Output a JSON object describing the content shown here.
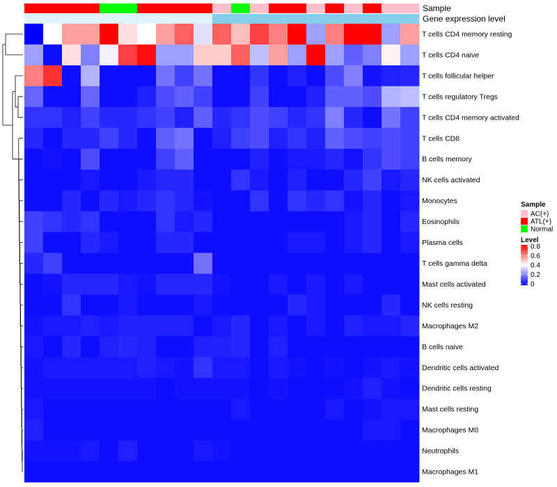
{
  "chart_data": {
    "type": "heatmap",
    "annotation_tracks": [
      {
        "label": "Sample",
        "values": [
          "ATL(+)",
          "ATL(+)",
          "ATL(+)",
          "ATL(+)",
          "Normal",
          "Normal",
          "ATL(+)",
          "ATL(+)",
          "ATL(+)",
          "ATL(+)",
          "AC(+)",
          "Normal",
          "AC(+)",
          "ATL(+)",
          "ATL(+)",
          "AC(+)",
          "ATL(+)",
          "AC(+)",
          "ATL(+)",
          "AC(+)",
          "AC(+)"
        ]
      },
      {
        "label": "Gene expression level",
        "values": [
          "low",
          "low",
          "low",
          "low",
          "low",
          "low",
          "low",
          "low",
          "low",
          "low",
          "high",
          "high",
          "high",
          "high",
          "high",
          "high",
          "high",
          "high",
          "high",
          "high",
          "high"
        ]
      }
    ],
    "sample_colors": {
      "AC(+)": "#FFC0CB",
      "ATL(+)": "#FF0000",
      "Normal": "#00FF00"
    },
    "expression_colors": {
      "low": "#DFF3FA",
      "high": "#87CEEB"
    },
    "row_labels": [
      "T cells CD4 memory resting",
      "T cells CD4 naive",
      "T cells follicular helper",
      "T cells regulatory  Tregs",
      "T cells CD4 memory activated",
      "T cells CD8",
      "B cells memory",
      "NK cells activated",
      "Monocytes",
      "Eosinophils",
      "Plasma cells",
      "T cells gamma delta",
      "Mast cells activated",
      "NK cells resting",
      "Macrophages M2",
      "B cells naive",
      "Dendritic cells activated",
      "Dendritic cells resting",
      "Mast cells resting",
      "Macrophages M0",
      "Neutrophils",
      "Macrophages M1"
    ],
    "values": [
      [
        0.0,
        0.4,
        0.55,
        0.55,
        0.8,
        0.45,
        0.4,
        0.55,
        0.65,
        0.35,
        0.65,
        0.5,
        0.7,
        0.6,
        0.8,
        0.25,
        0.6,
        0.8,
        0.8,
        0.25,
        0.55
      ],
      [
        0.25,
        0.02,
        0.45,
        0.2,
        0.38,
        0.7,
        0.78,
        0.25,
        0.25,
        0.48,
        0.48,
        0.65,
        0.3,
        0.55,
        0.25,
        0.8,
        0.25,
        0.15,
        0.2,
        0.42,
        0.25
      ],
      [
        0.6,
        0.72,
        0.02,
        0.28,
        0.02,
        0.02,
        0.02,
        0.18,
        0.1,
        0.18,
        0.02,
        0.02,
        0.08,
        0.02,
        0.05,
        0.02,
        0.12,
        0.2,
        0.03,
        0.05,
        0.06
      ],
      [
        0.16,
        0.02,
        0.02,
        0.16,
        0.02,
        0.02,
        0.05,
        0.12,
        0.15,
        0.1,
        0.02,
        0.02,
        0.1,
        0.02,
        0.02,
        0.05,
        0.15,
        0.15,
        0.12,
        0.28,
        0.3
      ],
      [
        0.08,
        0.08,
        0.05,
        0.1,
        0.06,
        0.06,
        0.08,
        0.1,
        0.05,
        0.15,
        0.06,
        0.08,
        0.12,
        0.1,
        0.06,
        0.08,
        0.2,
        0.06,
        0.02,
        0.18,
        0.1
      ],
      [
        0.06,
        0.02,
        0.06,
        0.06,
        0.1,
        0.06,
        0.02,
        0.15,
        0.18,
        0.02,
        0.05,
        0.1,
        0.12,
        0.05,
        0.08,
        0.05,
        0.15,
        0.12,
        0.1,
        0.12,
        0.1
      ],
      [
        0.02,
        0.03,
        0.02,
        0.12,
        0.02,
        0.02,
        0.02,
        0.1,
        0.15,
        0.02,
        0.02,
        0.02,
        0.05,
        0.02,
        0.04,
        0.04,
        0.06,
        0.03,
        0.08,
        0.12,
        0.1
      ],
      [
        0.02,
        0.02,
        0.02,
        0.04,
        0.02,
        0.02,
        0.04,
        0.06,
        0.06,
        0.02,
        0.02,
        0.08,
        0.04,
        0.02,
        0.05,
        0.02,
        0.02,
        0.06,
        0.1,
        0.04,
        0.06
      ],
      [
        0.02,
        0.02,
        0.06,
        0.02,
        0.06,
        0.04,
        0.06,
        0.08,
        0.06,
        0.03,
        0.02,
        0.02,
        0.08,
        0.02,
        0.08,
        0.06,
        0.08,
        0.03,
        0.06,
        0.02,
        0.04
      ],
      [
        0.1,
        0.08,
        0.06,
        0.08,
        0.02,
        0.02,
        0.02,
        0.08,
        0.04,
        0.06,
        0.02,
        0.02,
        0.02,
        0.02,
        0.02,
        0.02,
        0.02,
        0.04,
        0.06,
        0.02,
        0.06
      ],
      [
        0.1,
        0.02,
        0.02,
        0.06,
        0.04,
        0.02,
        0.02,
        0.06,
        0.06,
        0.02,
        0.02,
        0.02,
        0.02,
        0.02,
        0.04,
        0.04,
        0.02,
        0.04,
        0.06,
        0.02,
        0.04
      ],
      [
        0.06,
        0.1,
        0.02,
        0.02,
        0.02,
        0.02,
        0.02,
        0.02,
        0.02,
        0.18,
        0.02,
        0.02,
        0.02,
        0.02,
        0.02,
        0.02,
        0.02,
        0.02,
        0.02,
        0.02,
        0.02
      ],
      [
        0.02,
        0.03,
        0.06,
        0.06,
        0.06,
        0.04,
        0.03,
        0.06,
        0.06,
        0.06,
        0.03,
        0.02,
        0.02,
        0.04,
        0.02,
        0.04,
        0.02,
        0.04,
        0.02,
        0.02,
        0.02
      ],
      [
        0.02,
        0.02,
        0.08,
        0.02,
        0.02,
        0.04,
        0.02,
        0.02,
        0.02,
        0.04,
        0.02,
        0.02,
        0.02,
        0.02,
        0.06,
        0.04,
        0.02,
        0.02,
        0.02,
        0.06,
        0.02
      ],
      [
        0.03,
        0.04,
        0.04,
        0.05,
        0.04,
        0.05,
        0.05,
        0.05,
        0.05,
        0.02,
        0.04,
        0.06,
        0.02,
        0.04,
        0.02,
        0.04,
        0.02,
        0.05,
        0.04,
        0.04,
        0.06
      ],
      [
        0.04,
        0.02,
        0.06,
        0.02,
        0.05,
        0.06,
        0.05,
        0.02,
        0.02,
        0.05,
        0.05,
        0.06,
        0.02,
        0.05,
        0.02,
        0.02,
        0.02,
        0.02,
        0.02,
        0.02,
        0.02
      ],
      [
        0.03,
        0.04,
        0.04,
        0.04,
        0.04,
        0.04,
        0.05,
        0.04,
        0.03,
        0.08,
        0.04,
        0.04,
        0.02,
        0.04,
        0.03,
        0.02,
        0.03,
        0.02,
        0.03,
        0.04,
        0.03
      ],
      [
        0.03,
        0.03,
        0.03,
        0.03,
        0.03,
        0.03,
        0.03,
        0.02,
        0.03,
        0.03,
        0.03,
        0.03,
        0.02,
        0.03,
        0.02,
        0.02,
        0.02,
        0.03,
        0.05,
        0.03,
        0.02
      ],
      [
        0.04,
        0.02,
        0.02,
        0.02,
        0.02,
        0.02,
        0.02,
        0.02,
        0.02,
        0.02,
        0.02,
        0.04,
        0.02,
        0.02,
        0.02,
        0.02,
        0.04,
        0.02,
        0.03,
        0.04,
        0.04
      ],
      [
        0.05,
        0.02,
        0.02,
        0.02,
        0.02,
        0.02,
        0.02,
        0.02,
        0.02,
        0.02,
        0.02,
        0.02,
        0.02,
        0.02,
        0.02,
        0.02,
        0.02,
        0.02,
        0.04,
        0.04,
        0.02
      ],
      [
        0.03,
        0.03,
        0.03,
        0.04,
        0.02,
        0.05,
        0.02,
        0.02,
        0.02,
        0.04,
        0.03,
        0.02,
        0.02,
        0.02,
        0.02,
        0.02,
        0.02,
        0.02,
        0.02,
        0.02,
        0.02
      ],
      [
        0.02,
        0.02,
        0.02,
        0.02,
        0.02,
        0.02,
        0.02,
        0.02,
        0.02,
        0.02,
        0.02,
        0.02,
        0.02,
        0.02,
        0.02,
        0.02,
        0.02,
        0.02,
        0.02,
        0.02,
        0.02
      ]
    ],
    "color_scale": {
      "min": 0,
      "mid": 0.4,
      "max": 0.8,
      "colors": [
        "#0000FF",
        "#FFFFFF",
        "#FF0000"
      ]
    },
    "legend": {
      "sample_title": "Sample",
      "sample_entries": [
        "AC(+)",
        "ATL(+)",
        "Normal"
      ],
      "level_title": "Level",
      "level_ticks": [
        "0.8",
        "0.6",
        "0.4",
        "0.2",
        "0"
      ]
    },
    "row_dendrogram": true
  }
}
